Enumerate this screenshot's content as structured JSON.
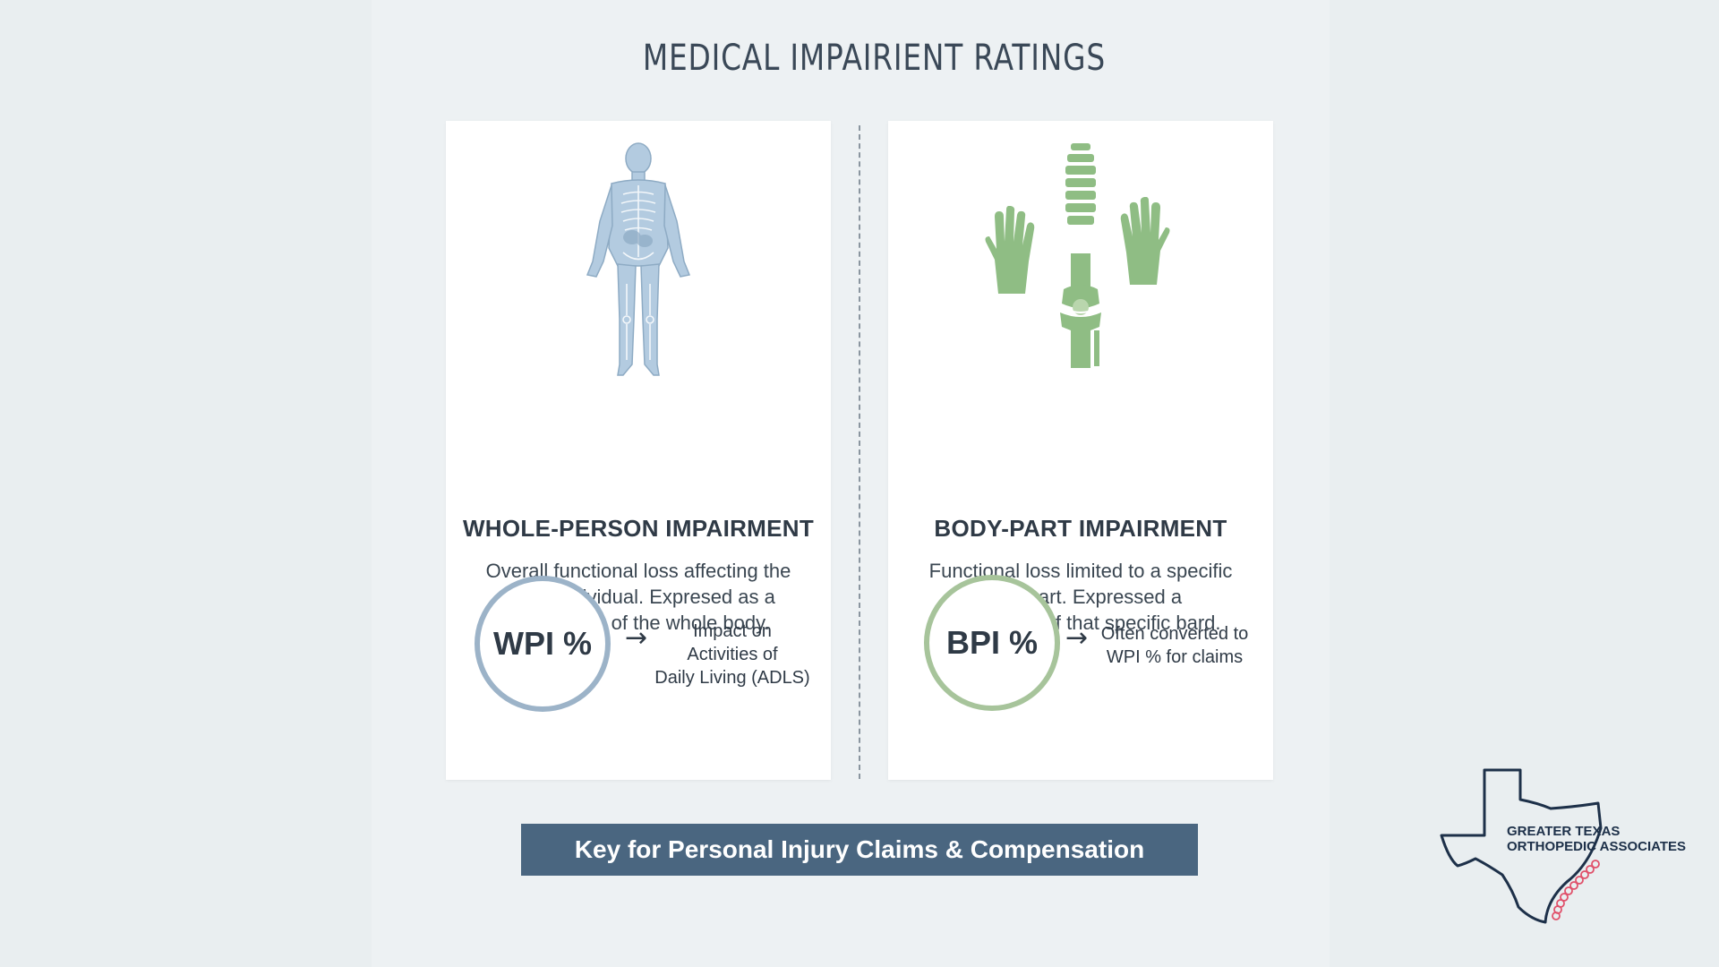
{
  "title": "MEDICAL IMPAIRIENT RATINGS",
  "left_card": {
    "heading": "WHOLE-PERSON IMPAIRMENT",
    "description_lines": [
      "Overall functional loss affecting the",
      "entire individual. Expresed as a",
      "percentage of the whole body."
    ],
    "badge": "WPI %",
    "note_lines": [
      "Impact on",
      "Activities of",
      "Daily Living (ADLS)"
    ],
    "figure_icon": "skeleton-body-icon"
  },
  "right_card": {
    "heading": "BODY-PART IMPAIRMENT",
    "description_lines": [
      "Functional loss limited to a specific",
      "body part. Expressed a",
      "percentage of that specific bard."
    ],
    "badge": "BPI %",
    "note_lines": [
      "Often converted to",
      "WPI % for claims"
    ],
    "figure_icons": [
      "hand-icon",
      "spine-icon",
      "knee-joint-icon",
      "hand-icon"
    ]
  },
  "arrow_glyph": "→",
  "banner": "Key for Personal Injury Claims & Compensation",
  "logo": {
    "line1": "GREATER TEXAS",
    "line2": "ORTHOPEDIC ASSOCIATES"
  },
  "colors": {
    "banner": "#4a6680",
    "wpi_ring": "#9cb3c8",
    "bpi_ring": "#a7c49b",
    "body_figure": "#a9c3d8",
    "green_icons": "#8fbd84",
    "logo_spine": "#e0506a"
  }
}
